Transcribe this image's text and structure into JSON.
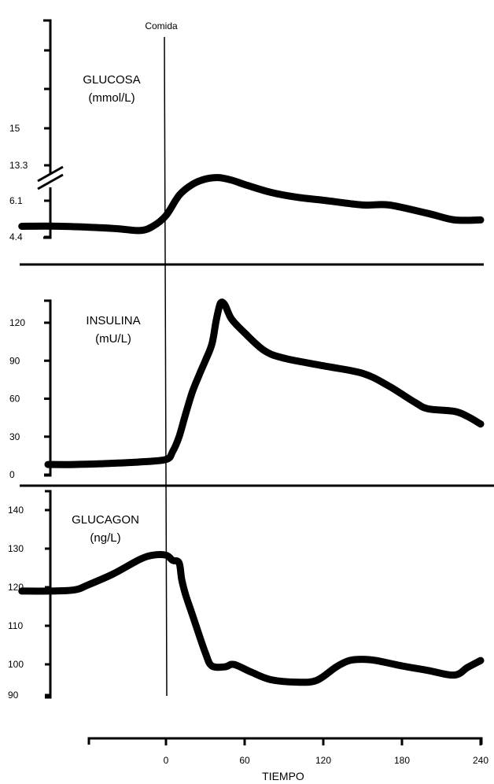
{
  "chart_data": [
    {
      "type": "line",
      "title": "GLUCOSA",
      "unit": "(mmol/L)",
      "annotation": "Comida",
      "yticks": [
        "4.4",
        "6.1",
        "13.3",
        "15"
      ],
      "x": [
        -110,
        -80,
        -40,
        -20,
        -10,
        0,
        10,
        20,
        30,
        40,
        50,
        60,
        80,
        100,
        120,
        150,
        170,
        200,
        220,
        240
      ],
      "values": [
        4.9,
        4.9,
        4.8,
        4.7,
        4.9,
        5.4,
        7.2,
        9.4,
        10.5,
        10.8,
        10.3,
        9.4,
        7.8,
        6.8,
        6.2,
        5.9,
        5.9,
        5.5,
        5.2,
        5.2
      ]
    },
    {
      "type": "line",
      "title": "INSULINA",
      "unit": "(mU/L)",
      "yticks": [
        "0",
        "30",
        "60",
        "90",
        "120"
      ],
      "ylim": [
        0,
        120
      ],
      "x": [
        -90,
        -70,
        -40,
        -20,
        0,
        5,
        10,
        15,
        20,
        25,
        30,
        35,
        38,
        40,
        42,
        45,
        50,
        60,
        75,
        90,
        120,
        150,
        170,
        190,
        200,
        220,
        230,
        240
      ],
      "values": [
        8,
        8,
        9,
        10,
        12,
        18,
        30,
        48,
        65,
        78,
        90,
        103,
        120,
        130,
        136,
        134,
        123,
        112,
        98,
        92,
        86,
        80,
        70,
        57,
        52,
        50,
        46,
        40
      ]
    },
    {
      "type": "line",
      "title": "GLUCAGON",
      "unit": "(ng/L)",
      "yticks": [
        "90",
        "100",
        "110",
        "120",
        "130",
        "140"
      ],
      "ylim": [
        90,
        140
      ],
      "x": [
        -110,
        -90,
        -70,
        -60,
        -40,
        -20,
        -10,
        0,
        5,
        10,
        12,
        15,
        20,
        30,
        35,
        45,
        50,
        55,
        65,
        80,
        100,
        115,
        130,
        140,
        150,
        160,
        180,
        200,
        220,
        230,
        240
      ],
      "values": [
        119,
        119,
        119.3,
        120.5,
        123.5,
        127.2,
        128.3,
        128.3,
        127,
        126.3,
        122,
        118,
        113,
        103,
        99.5,
        99.2,
        100,
        99.5,
        97.5,
        95,
        94.2,
        94.8,
        99.2,
        101,
        101.3,
        101,
        99.5,
        98,
        96.5,
        99,
        101
      ]
    }
  ],
  "xaxis": {
    "label": "TIEMPO",
    "ticks": [
      0,
      60,
      120,
      180,
      240
    ]
  }
}
